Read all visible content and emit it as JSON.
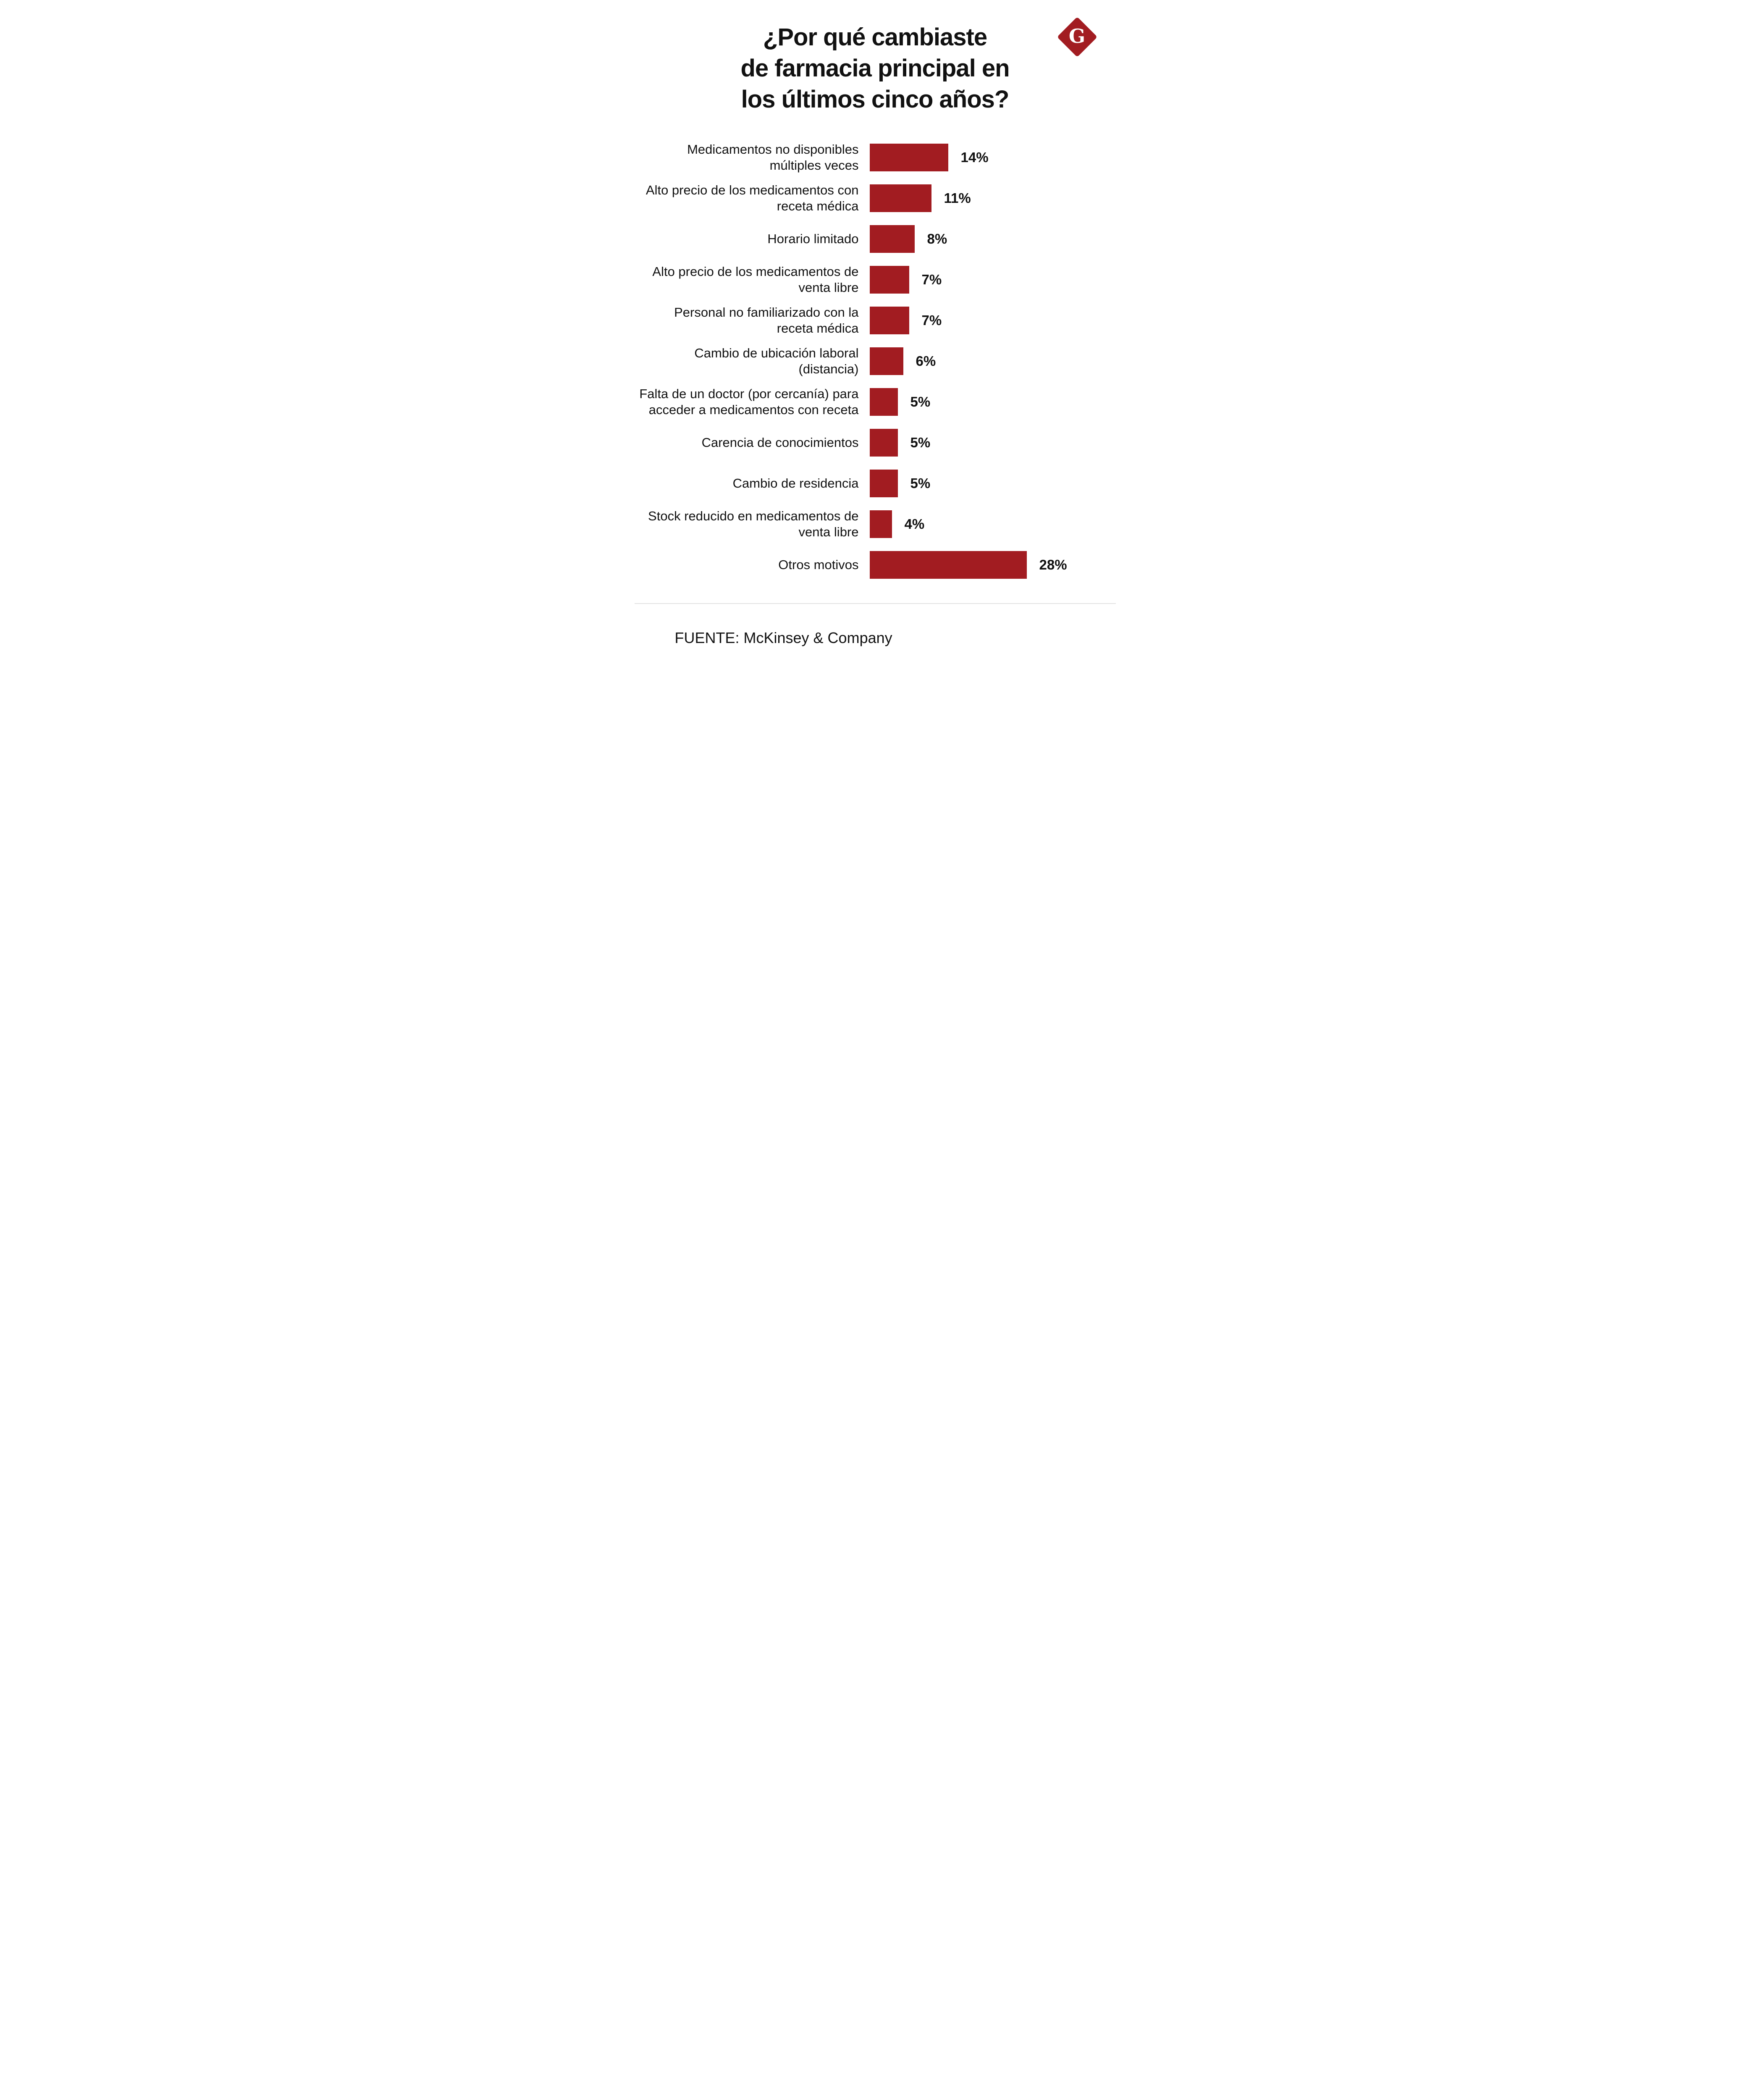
{
  "logo": {
    "letter": "G"
  },
  "title_lines": [
    "¿Por qué cambiaste",
    "de farmacia principal en",
    "los últimos cinco años?"
  ],
  "chart_data": {
    "type": "bar",
    "orientation": "horizontal",
    "title": "¿Por qué cambiaste de farmacia principal en los últimos cinco años?",
    "categories": [
      "Medicamentos no disponibles múltiples veces",
      "Alto precio de los medicamentos con receta médica",
      "Horario limitado",
      "Alto precio de los medicamentos de venta libre",
      "Personal no familiarizado con la receta médica",
      "Cambio de ubicación laboral (distancia)",
      "Falta de un doctor (por cercanía) para acceder a medicamentos con receta",
      "Carencia de conocimientos",
      "Cambio de residencia",
      "Stock reducido en medicamentos de venta libre",
      "Otros motivos"
    ],
    "values": [
      14,
      11,
      8,
      7,
      7,
      6,
      5,
      5,
      5,
      4,
      28
    ],
    "value_suffix": "%",
    "xlim": [
      0,
      28
    ],
    "bar_color": "#A21C21",
    "grid": false,
    "legend": "none"
  },
  "footer": {
    "source": "FUENTE: McKinsey & Company"
  }
}
